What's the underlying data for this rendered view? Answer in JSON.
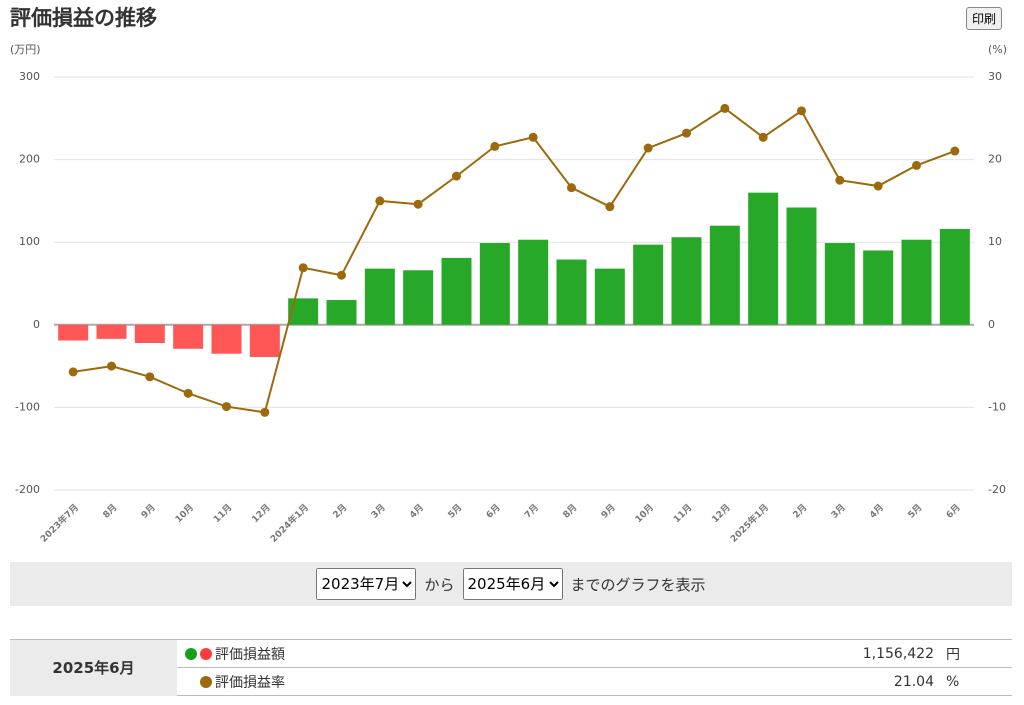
{
  "page": {
    "print_button": "印刷",
    "range": {
      "from": "2023年7月",
      "connector": "から",
      "to": "2025年6月",
      "suffix": "までのグラフを表示"
    },
    "summary": {
      "period": "2025年6月",
      "amount": "1,156,422",
      "amount_unit": "円",
      "rate_unit": "%"
    }
  },
  "chart_data": {
    "type": "bar_line",
    "title": "評価損益の推移",
    "y_label": "(万円)",
    "y2_label": "(%)",
    "categories": [
      "2023年7月",
      "8月",
      "9月",
      "10月",
      "11月",
      "12月",
      "2024年1月",
      "2月",
      "3月",
      "4月",
      "5月",
      "6月",
      "7月",
      "8月",
      "9月",
      "10月",
      "11月",
      "12月",
      "2025年1月",
      "2月",
      "3月",
      "4月",
      "5月",
      "6月"
    ],
    "series": [
      {
        "name": "評価損益額",
        "type": "bar",
        "color": "#28a828",
        "negative_color": "#ff5656",
        "values": [
          -19,
          -17,
          -22,
          -29,
          -35,
          -39,
          32,
          30,
          68,
          66,
          81,
          99,
          103,
          79,
          68,
          97,
          106,
          120,
          160,
          142,
          99,
          90,
          103,
          116
        ]
      },
      {
        "name": "評価損益率",
        "type": "line",
        "axis": "y2",
        "color": "#9c6a0c",
        "values": [
          -5.7,
          -5.0,
          -6.3,
          -8.3,
          -9.9,
          -10.6,
          6.9,
          6.0,
          15.0,
          14.6,
          18.0,
          21.6,
          22.7,
          16.6,
          14.3,
          21.4,
          23.2,
          26.2,
          22.7,
          25.9,
          17.5,
          16.8,
          19.3,
          21.04
        ]
      }
    ],
    "ylim": [
      -200,
      300
    ],
    "yticks": [
      -200,
      -100,
      0,
      100,
      200,
      300
    ],
    "y2lim": [
      -20,
      30
    ],
    "y2ticks": [
      -20,
      -10,
      0,
      10,
      20,
      30
    ],
    "grid": true
  }
}
